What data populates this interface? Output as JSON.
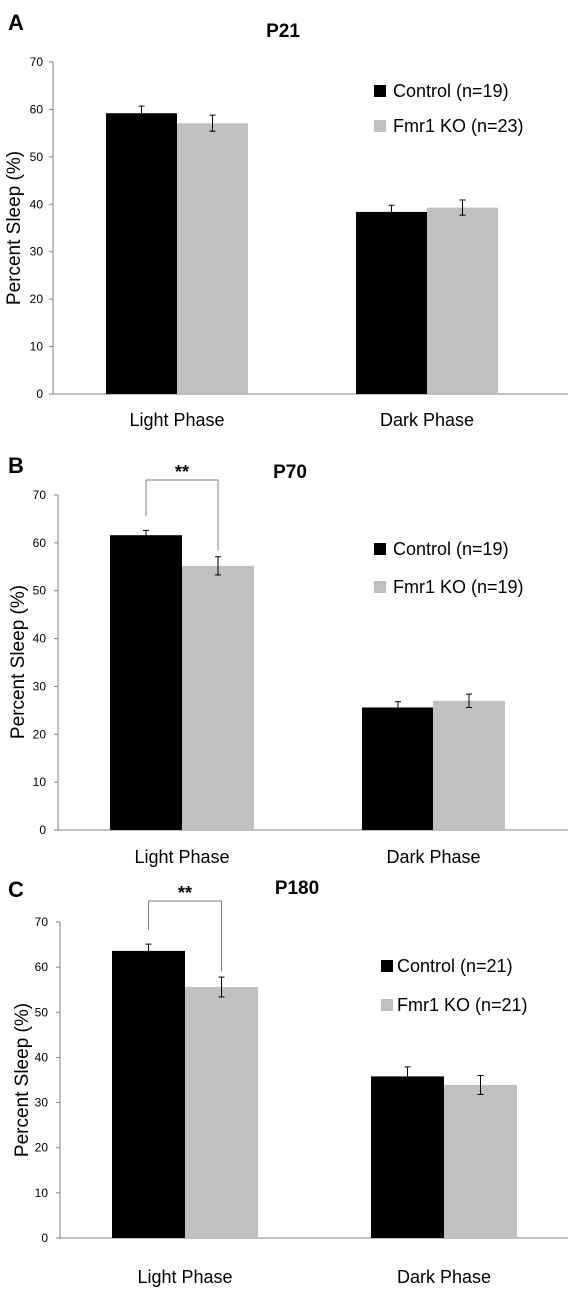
{
  "chart_data": [
    {
      "type": "bar",
      "panel_letter": "A",
      "title": "P21",
      "ylabel": "Percent Sleep (%)",
      "xlabel": "",
      "ylim": [
        0,
        70
      ],
      "yticks": [
        "0",
        "10",
        "20",
        "30",
        "40",
        "50",
        "60",
        "70"
      ],
      "categories": [
        "Light Phase",
        "Dark Phase"
      ],
      "series": [
        {
          "name": "Control (n=19)",
          "color": "#000000",
          "values": [
            59.2,
            38.4
          ],
          "errors": [
            1.5,
            1.4
          ]
        },
        {
          "name": "Fmr1 KO (n=23)",
          "color": "#c0c0c0",
          "values": [
            57.1,
            39.3
          ],
          "errors": [
            1.7,
            1.6
          ]
        }
      ],
      "significance": [],
      "legend_position": "top-right"
    },
    {
      "type": "bar",
      "panel_letter": "B",
      "title": "P70",
      "ylabel": "Percent Sleep (%)",
      "xlabel": "",
      "ylim": [
        0,
        70
      ],
      "yticks": [
        "0",
        "10",
        "20",
        "30",
        "40",
        "50",
        "60",
        "70"
      ],
      "categories": [
        "Light Phase",
        "Dark Phase"
      ],
      "series": [
        {
          "name": "Control (n=19)",
          "color": "#000000",
          "values": [
            61.6,
            25.6
          ],
          "errors": [
            1.0,
            1.2
          ]
        },
        {
          "name": "Fmr1 KO (n=19)",
          "color": "#c0c0c0",
          "values": [
            55.2,
            27.0
          ],
          "errors": [
            1.9,
            1.4
          ]
        }
      ],
      "significance": [
        {
          "category": 0,
          "label": "**"
        }
      ],
      "legend_position": "right"
    },
    {
      "type": "bar",
      "panel_letter": "C",
      "title": "P180",
      "ylabel": "Percent Sleep (%)",
      "xlabel": "",
      "ylim": [
        0,
        70
      ],
      "yticks": [
        "0",
        "10",
        "20",
        "30",
        "40",
        "50",
        "60",
        "70"
      ],
      "categories": [
        "Light Phase",
        "Dark Phase"
      ],
      "series": [
        {
          "name": "Control (n=21)",
          "color": "#000000",
          "values": [
            63.6,
            35.8
          ],
          "errors": [
            1.5,
            2.1
          ]
        },
        {
          "name": "Fmr1 KO (n=21)",
          "color": "#c0c0c0",
          "values": [
            55.6,
            33.9
          ],
          "errors": [
            2.2,
            2.1
          ]
        }
      ],
      "significance": [
        {
          "category": 0,
          "label": "**"
        }
      ],
      "legend_position": "right"
    }
  ]
}
